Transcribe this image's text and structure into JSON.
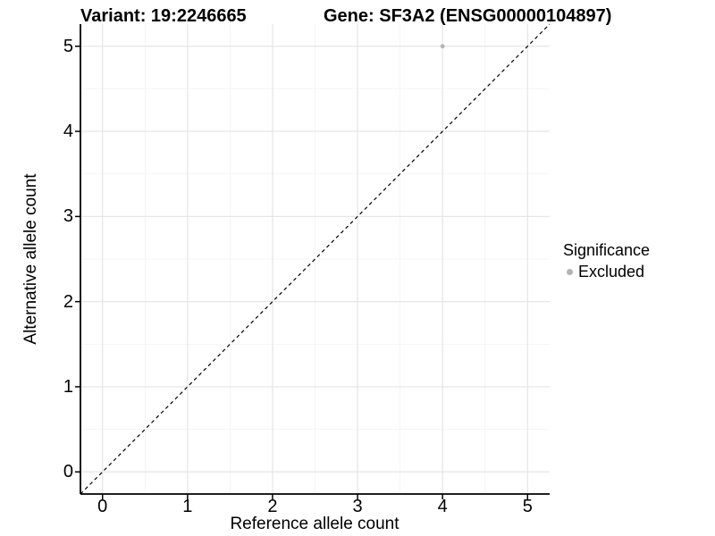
{
  "titles": {
    "variant": "Variant: 19:2246665",
    "gene": "Gene: SF3A2 (ENSG00000104897)"
  },
  "axes": {
    "x": {
      "label": "Reference allele count"
    },
    "y": {
      "label": "Alternative allele count"
    }
  },
  "legend": {
    "title": "Significance",
    "items": [
      {
        "label": "Excluded",
        "color": "#b3b3b3"
      }
    ]
  },
  "colors": {
    "background": "#ffffff",
    "grid_major": "#e3e3e3",
    "grid_minor": "#f1f1f1",
    "axis_line": "#000000",
    "tick_mark": "#000000",
    "reference_line": "#000000",
    "point": "#b3b3b3",
    "text": "#000000"
  },
  "chart_data": {
    "type": "scatter",
    "title": "Variant: 19:2246665   Gene: SF3A2 (ENSG00000104897)",
    "xlabel": "Reference allele count",
    "ylabel": "Alternative allele count",
    "xlim": [
      -0.26,
      5.26
    ],
    "ylim": [
      -0.26,
      5.26
    ],
    "x_ticks": [
      0,
      1,
      2,
      3,
      4,
      5
    ],
    "y_ticks": [
      0,
      1,
      2,
      3,
      4,
      5
    ],
    "x_minor_ticks": [
      0.5,
      1.5,
      2.5,
      3.5,
      4.5
    ],
    "y_minor_ticks": [
      0.5,
      1.5,
      2.5,
      3.5,
      4.5
    ],
    "grid": true,
    "legend_position": "right",
    "legend_title": "Significance",
    "series": [
      {
        "name": "Excluded",
        "color": "#b3b3b3",
        "marker": "circle",
        "points": [
          {
            "x": 4,
            "y": 5
          }
        ]
      }
    ],
    "reference_line": {
      "slope": 1,
      "intercept": 0,
      "style": "dashed",
      "color": "#000000",
      "note": "identity line y = x"
    }
  }
}
